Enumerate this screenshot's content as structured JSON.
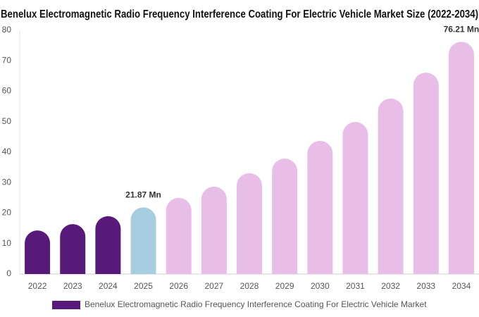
{
  "chart_data": {
    "type": "bar",
    "title": "Benelux Electromagnetic Radio Frequency Interference Coating For Electric Vehicle Market Size (2022-2034)",
    "categories": [
      "2022",
      "2023",
      "2024",
      "2025",
      "2026",
      "2027",
      "2028",
      "2029",
      "2030",
      "2031",
      "2032",
      "2033",
      "2034"
    ],
    "series": [
      {
        "name": "Benelux Electromagnetic Radio Frequency Interference Coating For Electric Vehicle Market",
        "color": "#581a7a",
        "values": [
          14.3,
          16.4,
          19.0,
          21.87,
          25.0,
          28.7,
          33.1,
          37.9,
          43.7,
          49.9,
          57.6,
          66.1,
          76.21
        ],
        "value_labels": [
          null,
          null,
          null,
          "21.87 Mn",
          null,
          null,
          null,
          null,
          null,
          null,
          null,
          null,
          "76.21 Mn"
        ],
        "colors": [
          "#581a7a",
          "#581a7a",
          "#581a7a",
          "#a7cde0",
          "#e8bde8",
          "#e8bde8",
          "#e8bde8",
          "#e8bde8",
          "#e8bde8",
          "#e8bde8",
          "#e8bde8",
          "#e8bde8",
          "#e8bde8"
        ]
      }
    ],
    "ylim": [
      0,
      80
    ],
    "yticks": [
      0,
      10,
      20,
      30,
      40,
      50,
      60,
      70,
      80
    ],
    "grid": false,
    "legend": "bottom"
  }
}
